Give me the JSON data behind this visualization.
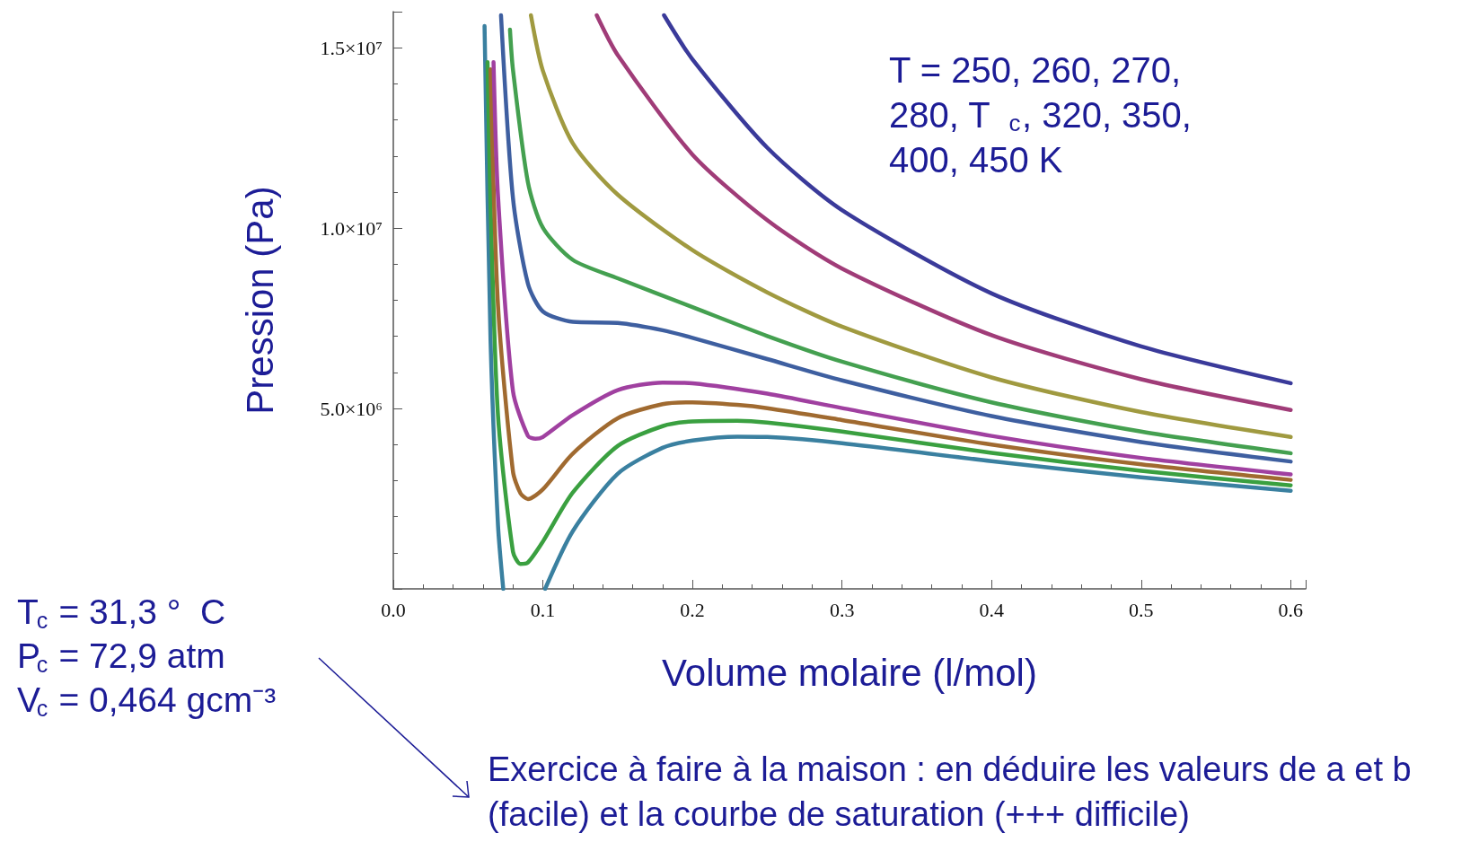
{
  "chart_data": {
    "type": "line",
    "xlabel": "Volume molaire (l/mol)",
    "ylabel": "Pression (Pa)",
    "xlim": [
      0,
      0.61
    ],
    "ylim": [
      0,
      16000000
    ],
    "xticks": [
      {
        "value": 0,
        "label": "0.0"
      },
      0.1,
      0.2,
      0.3,
      0.4,
      0.5,
      0.6
    ],
    "yticks": [
      {
        "value": 5000000,
        "label": "5.0×10⁶"
      },
      {
        "value": 10000000,
        "label": "1.0×10⁷"
      },
      {
        "value": 15000000,
        "label": "1.5×10⁷"
      }
    ],
    "grid": false,
    "marker": "none",
    "line_style": "solid",
    "annotations": [
      "T = 250, 260, 270, 280, T$_{c}$, 320, 350, 400, 450 K",
      "T$_{c}$ = 31,3 °  C",
      "P$_{c}$ = 72,9 atm",
      "V$_{c}$ = 0,464 gcm⁻³",
      "Exercice à faire à la maison : en déduire les valeurs de a et b (facile) et la courbe de saturation (+++ difficile)"
    ],
    "series": [
      {
        "color": "#3a80a0",
        "x": [
          0.061,
          0.065,
          0.07,
          0.0735,
          0.09,
          0.1015,
          0.12,
          0.15,
          0.18,
          0.2,
          0.23,
          0.25,
          0.3,
          0.4,
          0.5,
          0.6
        ],
        "values": [
          15600000,
          6900000,
          1760000,
          0,
          null,
          0,
          1600000,
          3190000,
          3910000,
          4110000,
          4220000,
          4210000,
          4040000,
          3540000,
          3090000,
          2720000
        ]
      },
      {
        "color": "#3aa040",
        "x": [
          0.063,
          0.065,
          0.07,
          0.08,
          0.085,
          0.09,
          0.1,
          0.12,
          0.15,
          0.18,
          0.2,
          0.23,
          0.25,
          0.3,
          0.4,
          0.5,
          0.6
        ],
        "values": [
          14600000,
          10660000,
          4800000,
          1030000,
          690000,
          730000,
          1310000,
          2670000,
          3960000,
          4510000,
          4640000,
          4660000,
          4610000,
          4360000,
          3770000,
          3270000,
          2870000
        ]
      },
      {
        "color": "#a06a30",
        "x": [
          0.065,
          0.07,
          0.08,
          0.085,
          0.09,
          0.1,
          0.12,
          0.15,
          0.18,
          0.2,
          0.23,
          0.25,
          0.3,
          0.4,
          0.5,
          0.6
        ],
        "values": [
          14400000,
          7850000,
          3250000,
          2650000,
          2490000,
          2760000,
          3750000,
          4730000,
          5120000,
          5170000,
          5100000,
          5010000,
          4680000,
          4000000,
          3450000,
          3020000
        ]
      },
      {
        "color": "#a040a0",
        "x": [
          0.067,
          0.07,
          0.08,
          0.09,
          0.095,
          0.1,
          0.12,
          0.15,
          0.18,
          0.2,
          0.25,
          0.3,
          0.4,
          0.5,
          0.6
        ],
        "values": [
          14600000,
          10890000,
          5480000,
          4240000,
          4160000,
          4210000,
          4820000,
          5510000,
          5720000,
          5700000,
          5410000,
          5010000,
          4240000,
          3630000,
          3170000
        ]
      },
      {
        "color": "#3e5fa0",
        "x": [
          0.072,
          0.08,
          0.09,
          0.1,
          0.12,
          0.15,
          0.18,
          0.2,
          0.25,
          0.3,
          0.4,
          0.5,
          0.6
        ],
        "values": [
          15900000,
          10830000,
          8460000,
          7690000,
          7400000,
          7370000,
          7170000,
          6960000,
          6370000,
          5780000,
          4790000,
          4070000,
          3530000
        ]
      },
      {
        "color": "#44a050",
        "x": [
          0.078,
          0.08,
          0.09,
          0.1,
          0.12,
          0.15,
          0.2,
          0.25,
          0.3,
          0.4,
          0.5,
          0.6
        ],
        "values": [
          15500000,
          14390000,
          11270000,
          10010000,
          9120000,
          8610000,
          7810000,
          7010000,
          6300000,
          5170000,
          4360000,
          3760000
        ]
      },
      {
        "color": "#a09a40",
        "x": [
          0.092,
          0.1,
          0.12,
          0.15,
          0.2,
          0.25,
          0.3,
          0.4,
          0.5,
          0.6
        ],
        "values": [
          15900000,
          14360000,
          12350000,
          10930000,
          9390000,
          8220000,
          7270000,
          5860000,
          4900000,
          4210000
        ]
      },
      {
        "color": "#a03c78",
        "x": [
          0.136,
          0.15,
          0.2,
          0.25,
          0.3,
          0.4,
          0.5,
          0.6
        ],
        "values": [
          15900000,
          14800000,
          12040000,
          10220000,
          8880000,
          7030000,
          5810000,
          4960000
        ]
      },
      {
        "color": "#3a3a9a",
        "x": [
          0.181,
          0.2,
          0.25,
          0.3,
          0.4,
          0.5,
          0.6
        ],
        "values": [
          15900000,
          14680000,
          12230000,
          10500000,
          8190000,
          6720000,
          5700000
        ]
      }
    ]
  }
}
